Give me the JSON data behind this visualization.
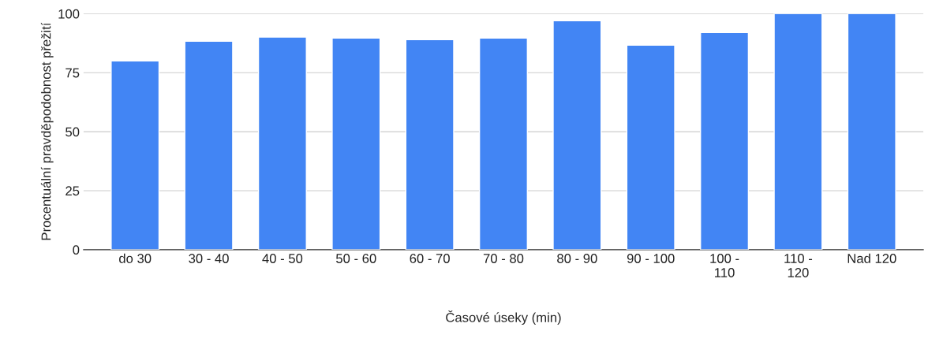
{
  "chart_data": {
    "type": "bar",
    "xlabel": "Časové úseky (min)",
    "ylabel": "Procentuální pravděpodobnost přežití",
    "categories": [
      "do 30",
      "30 - 40",
      "40 - 50",
      "50 - 60",
      "60 - 70",
      "70 - 80",
      "80 - 90",
      "90 - 100",
      "100 -\n110",
      "110 -\n120",
      "Nad 120"
    ],
    "values": [
      80,
      88.3,
      90.1,
      89.7,
      89,
      89.7,
      97,
      86.7,
      92,
      100,
      100
    ],
    "color": "#4285f4",
    "ylim": [
      0,
      100
    ],
    "yticks": [
      0,
      25,
      50,
      75,
      100
    ],
    "grid": "y",
    "legend": false
  }
}
